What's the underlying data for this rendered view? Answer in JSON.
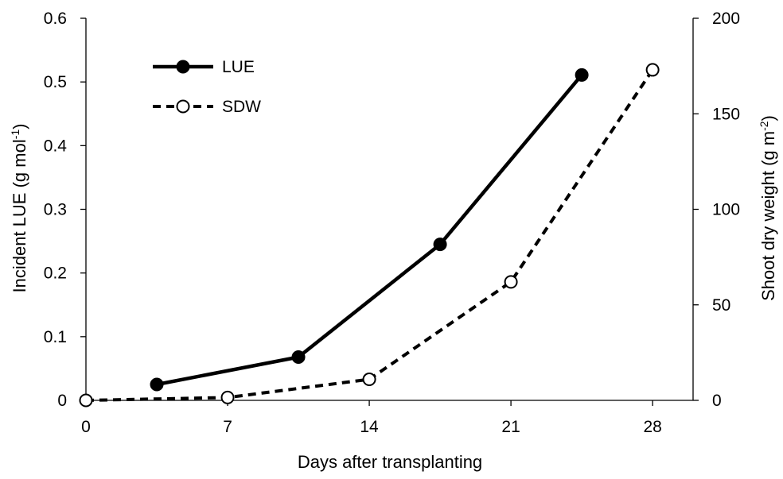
{
  "chart_data": {
    "type": "line",
    "xlabel": "Days after transplanting",
    "ylabel_left": {
      "main": "Incident LUE (g mol",
      "sup": "-1",
      "tail": ")"
    },
    "ylabel_right": {
      "main": "Shoot dry weight (g m",
      "sup": "-2",
      "tail": ")"
    },
    "xlim": [
      0,
      30
    ],
    "ylim_left": [
      0,
      0.6
    ],
    "ylim_right": [
      0,
      200
    ],
    "x_ticks": [
      "0",
      "7",
      "14",
      "21",
      "28"
    ],
    "y_left_ticks": [
      "0",
      "0.1",
      "0.2",
      "0.3",
      "0.4",
      "0.5",
      "0.6"
    ],
    "y_right_ticks": [
      "0",
      "50",
      "100",
      "150",
      "200"
    ],
    "grid": false,
    "legend_position": "top-left",
    "series": [
      {
        "name": "LUE",
        "axis": "left",
        "line_style": "solid",
        "marker": "filled-circle",
        "color": "#000000",
        "x": [
          3.5,
          10.5,
          17.5,
          24.5
        ],
        "y": [
          0.025,
          0.068,
          0.245,
          0.511
        ]
      },
      {
        "name": "SDW",
        "axis": "right",
        "line_style": "dashed",
        "marker": "open-circle",
        "color": "#000000",
        "x": [
          0,
          7,
          14,
          21,
          28
        ],
        "y": [
          0,
          1.5,
          11,
          62,
          173
        ]
      }
    ]
  }
}
